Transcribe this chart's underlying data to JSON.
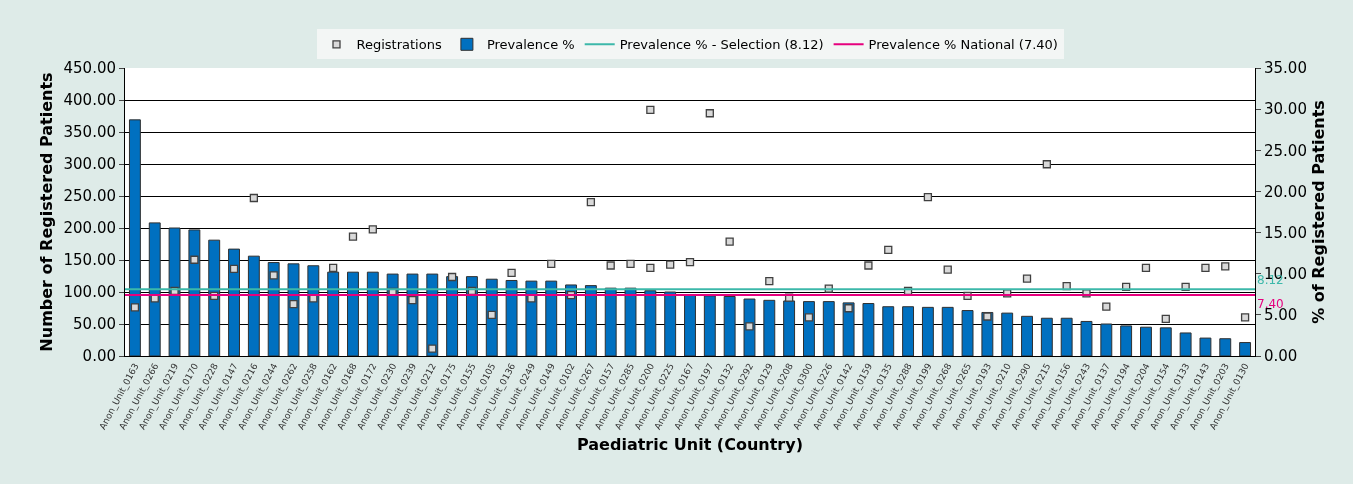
{
  "chart_data": {
    "type": "bar",
    "xlabel": "Paediatric Unit (Country)",
    "ylabel": "Number of Registered Patients",
    "y2label": "% of Registered Patients",
    "categories": [
      "Anon_Unit_0163",
      "Anon_Unit_0266",
      "Anon_Unit_0219",
      "Anon_Unit_0170",
      "Anon_Unit_0228",
      "Anon_Unit_0147",
      "Anon_Unit_0216",
      "Anon_Unit_0244",
      "Anon_Unit_0262",
      "Anon_Unit_0258",
      "Anon_Unit_0162",
      "Anon_Unit_0168",
      "Anon_Unit_0172",
      "Anon_Unit_0230",
      "Anon_Unit_0239",
      "Anon_Unit_0212",
      "Anon_Unit_0175",
      "Anon_Unit_0155",
      "Anon_Unit_0105",
      "Anon_Unit_0136",
      "Anon_Unit_0249",
      "Anon_Unit_0149",
      "Anon_Unit_0102",
      "Anon_Unit_0267",
      "Anon_Unit_0157",
      "Anon_Unit_0285",
      "Anon_Unit_0200",
      "Anon_Unit_0225",
      "Anon_Unit_0167",
      "Anon_Unit_0197",
      "Anon_Unit_0132",
      "Anon_Unit_0292",
      "Anon_Unit_0129",
      "Anon_Unit_0208",
      "Anon_Unit_0300",
      "Anon_Unit_0226",
      "Anon_Unit_0142",
      "Anon_Unit_0159",
      "Anon_Unit_0135",
      "Anon_Unit_0288",
      "Anon_Unit_0199",
      "Anon_Unit_0268",
      "Anon_Unit_0265",
      "Anon_Unit_0193",
      "Anon_Unit_0210",
      "Anon_Unit_0290",
      "Anon_Unit_0215",
      "Anon_Unit_0156",
      "Anon_Unit_0243",
      "Anon_Unit_0137",
      "Anon_Unit_0194",
      "Anon_Unit_0204",
      "Anon_Unit_0154",
      "Anon_Unit_0133",
      "Anon_Unit_0143",
      "Anon_Unit_0203",
      "Anon_Unit_0130"
    ],
    "series": [
      {
        "name": "Registrations",
        "type": "scatter",
        "axis": "y2",
        "marker": "square",
        "color": "#d9d9d9",
        "values": [
          5.9,
          7.0,
          7.9,
          11.7,
          7.3,
          10.6,
          19.2,
          9.8,
          6.3,
          7.0,
          10.7,
          14.5,
          15.4,
          7.8,
          6.8,
          0.9,
          9.6,
          7.9,
          5.0,
          10.1,
          7.0,
          11.2,
          7.4,
          18.7,
          11.0,
          11.2,
          10.7,
          11.1,
          11.4,
          29.5,
          13.9,
          3.6,
          9.1,
          7.1,
          4.7,
          8.2,
          5.8,
          11.0,
          12.9,
          7.9,
          19.3,
          10.5,
          7.3,
          4.8,
          7.6,
          9.4,
          23.3,
          8.5,
          7.6,
          6.0,
          8.4,
          10.7,
          4.5,
          8.4,
          10.7,
          10.9,
          4.7
        ]
      },
      {
        "type": "scatter",
        "axis": "y2",
        "marker": "square",
        "color": "#d9d9d9",
        "values": [
          null,
          null,
          null,
          null,
          null,
          null,
          null,
          null,
          null,
          null,
          null,
          null,
          null,
          null,
          null,
          null,
          null,
          null,
          null,
          null,
          null,
          null,
          null,
          null,
          null,
          null,
          29.9,
          null,
          null,
          null,
          null,
          null,
          null,
          null,
          null,
          null,
          null,
          null,
          null,
          null,
          null,
          null,
          null,
          null,
          null,
          null,
          null,
          null,
          null,
          null,
          null,
          null,
          null,
          null,
          null,
          null,
          null
        ]
      },
      {
        "name": "Prevalence %",
        "axis": "y",
        "color": "#0070c0",
        "values": [
          369,
          208,
          200,
          197,
          181,
          167,
          156,
          146,
          144,
          141,
          131,
          131,
          131,
          128,
          128,
          128,
          124,
          124,
          120,
          118,
          117,
          117,
          111,
          110,
          106,
          106,
          102,
          100,
          95,
          94,
          93,
          89,
          87,
          86,
          85,
          85,
          83,
          82,
          77,
          77,
          76,
          76,
          71,
          68,
          67,
          62,
          59,
          59,
          54,
          50,
          47,
          45,
          44,
          36,
          28,
          27,
          21
        ]
      }
    ],
    "ref_lines": [
      {
        "axis": "y2",
        "value": 8.12,
        "label": "Prevalence % - Selection (8.12)",
        "color": "#3cb8aa"
      },
      {
        "axis": "y2",
        "value": 7.4,
        "label": "Prevalence % National (7.40)",
        "color": "#e6007e"
      }
    ],
    "annotations": [
      "8.12",
      "7.40"
    ],
    "ylim": [
      0,
      450
    ],
    "yticks": [
      {
        "value": 0,
        "label": "0.00"
      },
      {
        "value": 50,
        "label": "50.00"
      },
      {
        "value": 100,
        "label": "100.00"
      },
      {
        "value": 150,
        "label": "150.00"
      },
      {
        "value": 200,
        "label": "200.00"
      },
      {
        "value": 250,
        "label": "250.00"
      },
      {
        "value": 300,
        "label": "300.00"
      },
      {
        "value": 350,
        "label": "350.00"
      },
      {
        "value": 400,
        "label": "400.00"
      },
      {
        "value": 450,
        "label": "450.00"
      }
    ],
    "y2lim": [
      0,
      35
    ],
    "y2ticks": [
      {
        "value": 0,
        "label": "0.00"
      },
      {
        "value": 5,
        "label": "5.00"
      },
      {
        "value": 10,
        "label": "10.00"
      },
      {
        "value": 15,
        "label": "15.00"
      },
      {
        "value": 20,
        "label": "20.00"
      },
      {
        "value": 25,
        "label": "25.00"
      },
      {
        "value": 30,
        "label": "30.00"
      },
      {
        "value": 35,
        "label": "35.00"
      }
    ],
    "grid": "y",
    "legend": "top"
  }
}
